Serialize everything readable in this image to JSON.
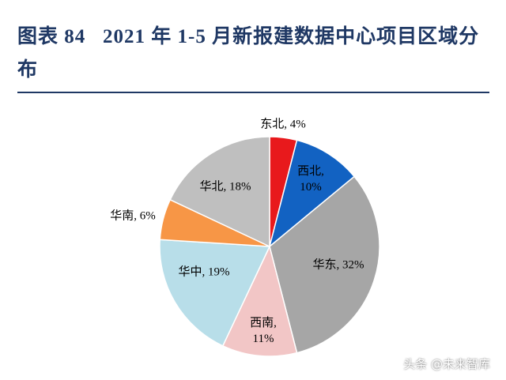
{
  "chart_data": {
    "type": "pie",
    "title": "图表 84   2021 年 1-5 月新报建数据中心项目区域分布",
    "values": [
      4,
      10,
      32,
      11,
      19,
      6,
      18
    ],
    "value_labels": [
      "东北, 4%",
      "西北, 10%",
      "华东, 32%",
      "西南, 11%",
      "华中, 19%",
      "华南, 6%",
      "华北, 18%"
    ],
    "colors": [
      "#e8191c",
      "#1262c2",
      "#a6a6a6",
      "#f2c6c6",
      "#b8dee9",
      "#f79646",
      "#bfbfbf"
    ],
    "watermark": "头条 @未来智库"
  }
}
